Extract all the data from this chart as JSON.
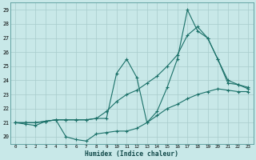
{
  "xlabel": "Humidex (Indice chaleur)",
  "bg_color": "#c8e8e8",
  "grid_color": "#a8cccc",
  "line_color": "#1a7068",
  "xmin": -0.5,
  "xmax": 23.5,
  "ymin": 19.5,
  "ymax": 29.5,
  "yticks": [
    20,
    21,
    22,
    23,
    24,
    25,
    26,
    27,
    28,
    29
  ],
  "xticks": [
    0,
    1,
    2,
    3,
    4,
    5,
    6,
    7,
    8,
    9,
    10,
    11,
    12,
    13,
    14,
    15,
    16,
    17,
    18,
    19,
    20,
    21,
    22,
    23
  ],
  "line1_y": [
    21.0,
    20.9,
    20.8,
    21.1,
    21.2,
    20.0,
    19.8,
    19.7,
    20.2,
    20.3,
    20.4,
    20.4,
    20.6,
    21.0,
    21.5,
    22.0,
    22.3,
    22.7,
    23.0,
    23.2,
    23.4,
    23.3,
    23.2,
    23.2
  ],
  "line2_y": [
    21.0,
    21.0,
    21.0,
    21.1,
    21.2,
    21.2,
    21.2,
    21.2,
    21.3,
    21.3,
    24.5,
    25.5,
    24.2,
    21.0,
    21.8,
    23.5,
    25.5,
    29.0,
    27.5,
    27.0,
    25.5,
    23.8,
    23.7,
    23.5
  ],
  "line3_y": [
    21.0,
    21.0,
    21.0,
    21.1,
    21.2,
    21.2,
    21.2,
    21.2,
    21.3,
    21.8,
    22.5,
    23.0,
    23.3,
    23.8,
    24.3,
    25.0,
    25.8,
    27.2,
    27.8,
    27.0,
    25.5,
    24.0,
    23.7,
    23.4
  ]
}
